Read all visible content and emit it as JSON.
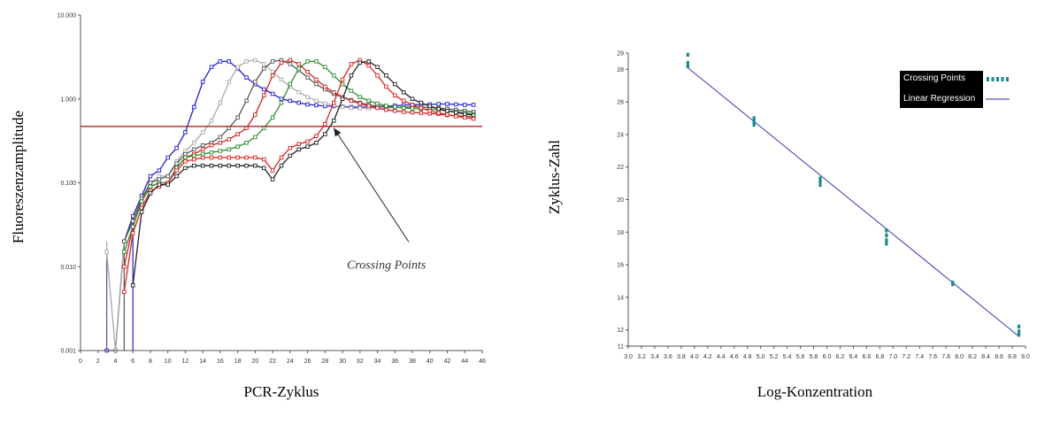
{
  "chart_data": [
    {
      "type": "line",
      "xlabel": "PCR-Zyklus",
      "ylabel": "Fluoreszenzamplitude",
      "yscale": "log",
      "xlim": [
        0,
        46
      ],
      "ylim": [
        0.001,
        10
      ],
      "x_ticks": [
        0,
        2,
        4,
        6,
        8,
        10,
        12,
        14,
        16,
        18,
        20,
        22,
        24,
        26,
        28,
        30,
        32,
        34,
        36,
        38,
        40,
        42,
        44,
        46
      ],
      "y_ticks": [
        {
          "value": 0.001,
          "label": "0.001"
        },
        {
          "value": 0.01,
          "label": "0.010"
        },
        {
          "value": 0.1,
          "label": "0.100"
        },
        {
          "value": 1,
          "label": "1.000"
        },
        {
          "value": 10,
          "label": "10.000"
        }
      ],
      "threshold": {
        "y": 0.47,
        "color": "#b22222"
      },
      "annotation": {
        "text": "Crossing Points",
        "arrow_to": {
          "x": 29,
          "y": 0.45
        },
        "text_at": {
          "x": 30.5,
          "y": 0.0095
        }
      },
      "grid": false,
      "series": [
        {
          "color": "#1f1fd6",
          "x": [
            3,
            4,
            5,
            6,
            7,
            8,
            9,
            10,
            11,
            12,
            13,
            14,
            15,
            16,
            17,
            18,
            19,
            20,
            21,
            22,
            23,
            24,
            25,
            26,
            27,
            28,
            29,
            30,
            31,
            32,
            33,
            34,
            35,
            36,
            37,
            38,
            39,
            40,
            41,
            42,
            43,
            44,
            45
          ],
          "y": [
            0.001,
            0.001,
            0.02,
            0.04,
            0.07,
            0.12,
            0.14,
            0.2,
            0.26,
            0.4,
            0.8,
            1.6,
            2.4,
            2.8,
            2.8,
            2.3,
            1.8,
            1.5,
            1.3,
            1.15,
            1.0,
            0.95,
            0.9,
            0.86,
            0.84,
            0.82,
            0.82,
            0.81,
            0.8,
            0.8,
            0.8,
            0.81,
            0.82,
            0.83,
            0.84,
            0.85,
            0.86,
            0.86,
            0.87,
            0.87,
            0.86,
            0.85,
            0.85
          ]
        },
        {
          "color": "#a9a9a9",
          "x": [
            3,
            4,
            5,
            6,
            7,
            8,
            9,
            10,
            11,
            12,
            13,
            14,
            15,
            16,
            17,
            18,
            19,
            20,
            21,
            22,
            23,
            24,
            25,
            26,
            27,
            28,
            29,
            30,
            31,
            32,
            33,
            34,
            35,
            36,
            37,
            38,
            39,
            40,
            41,
            42,
            43,
            44,
            45
          ],
          "y": [
            0.015,
            0.001,
            0.02,
            0.035,
            0.06,
            0.1,
            0.12,
            0.12,
            0.18,
            0.24,
            0.3,
            0.4,
            0.55,
            0.9,
            1.6,
            2.4,
            2.8,
            2.9,
            2.6,
            2.1,
            1.7,
            1.4,
            1.2,
            1.05,
            0.95,
            0.88,
            0.84,
            0.8,
            0.78,
            0.77,
            0.77,
            0.78,
            0.78,
            0.79,
            0.8,
            0.8,
            0.8,
            0.79,
            0.78,
            0.76,
            0.74,
            0.72,
            0.7
          ]
        },
        {
          "color": "#555555",
          "x": [
            5,
            6,
            7,
            8,
            9,
            10,
            11,
            12,
            13,
            14,
            15,
            16,
            17,
            18,
            19,
            20,
            21,
            22,
            23,
            24,
            25,
            26,
            27,
            28,
            29,
            30,
            31,
            32,
            33,
            34,
            35,
            36,
            37,
            38,
            39,
            40,
            41,
            42,
            43,
            44,
            45
          ],
          "y": [
            0.02,
            0.035,
            0.065,
            0.1,
            0.11,
            0.12,
            0.17,
            0.22,
            0.25,
            0.28,
            0.3,
            0.35,
            0.45,
            0.6,
            0.95,
            1.6,
            2.3,
            2.8,
            2.9,
            2.6,
            2.2,
            1.8,
            1.5,
            1.3,
            1.15,
            1.05,
            0.97,
            0.9,
            0.85,
            0.82,
            0.8,
            0.79,
            0.79,
            0.8,
            0.8,
            0.79,
            0.78,
            0.76,
            0.74,
            0.72,
            0.7
          ]
        },
        {
          "color": "#cc2222",
          "x": [
            5,
            6,
            7,
            8,
            9,
            10,
            11,
            12,
            13,
            14,
            15,
            16,
            17,
            18,
            19,
            20,
            21,
            22,
            23,
            24,
            25,
            26,
            27,
            28,
            29,
            30,
            31,
            32,
            33,
            34,
            35,
            36,
            37,
            38,
            39,
            40,
            41,
            42,
            43,
            44,
            45
          ],
          "y": [
            0.01,
            0.03,
            0.06,
            0.09,
            0.1,
            0.1,
            0.15,
            0.2,
            0.22,
            0.25,
            0.28,
            0.3,
            0.33,
            0.38,
            0.45,
            0.65,
            1.1,
            1.9,
            2.7,
            2.9,
            2.6,
            2.1,
            1.7,
            1.4,
            1.2,
            1.05,
            0.95,
            0.88,
            0.82,
            0.78,
            0.74,
            0.72,
            0.7,
            0.69,
            0.68,
            0.67,
            0.66,
            0.64,
            0.63,
            0.62,
            0.61
          ]
        },
        {
          "color": "#2e8b2e",
          "x": [
            5,
            6,
            7,
            8,
            9,
            10,
            11,
            12,
            13,
            14,
            15,
            16,
            17,
            18,
            19,
            20,
            21,
            22,
            23,
            24,
            25,
            26,
            27,
            28,
            29,
            30,
            31,
            32,
            33,
            34,
            35,
            36,
            37,
            38,
            39,
            40,
            41,
            42,
            43,
            44,
            45
          ],
          "y": [
            0.015,
            0.03,
            0.06,
            0.09,
            0.1,
            0.1,
            0.15,
            0.2,
            0.21,
            0.22,
            0.23,
            0.24,
            0.25,
            0.27,
            0.3,
            0.35,
            0.45,
            0.6,
            0.9,
            1.5,
            2.3,
            2.8,
            2.8,
            2.4,
            1.9,
            1.5,
            1.25,
            1.05,
            0.95,
            0.88,
            0.83,
            0.8,
            0.78,
            0.77,
            0.76,
            0.75,
            0.74,
            0.72,
            0.7,
            0.68,
            0.66
          ]
        },
        {
          "color": "#dd2222",
          "x": [
            5,
            6,
            7,
            8,
            9,
            10,
            11,
            12,
            13,
            14,
            15,
            16,
            17,
            18,
            19,
            20,
            21,
            22,
            23,
            24,
            25,
            26,
            27,
            28,
            29,
            30,
            31,
            32,
            33,
            34,
            35,
            36,
            37,
            38,
            39,
            40,
            41,
            42,
            43,
            44,
            45
          ],
          "y": [
            0.005,
            0.025,
            0.05,
            0.08,
            0.09,
            0.1,
            0.14,
            0.18,
            0.19,
            0.2,
            0.2,
            0.2,
            0.2,
            0.2,
            0.2,
            0.2,
            0.19,
            0.14,
            0.2,
            0.26,
            0.29,
            0.31,
            0.36,
            0.5,
            0.9,
            1.7,
            2.6,
            2.9,
            2.5,
            1.9,
            1.4,
            1.1,
            0.95,
            0.85,
            0.78,
            0.72,
            0.68,
            0.65,
            0.62,
            0.6,
            0.58
          ]
        },
        {
          "color": "#222222",
          "x": [
            6,
            7,
            8,
            9,
            10,
            11,
            12,
            13,
            14,
            15,
            16,
            17,
            18,
            19,
            20,
            21,
            22,
            23,
            24,
            25,
            26,
            27,
            28,
            29,
            30,
            31,
            32,
            33,
            34,
            35,
            36,
            37,
            38,
            39,
            40,
            41,
            42,
            43,
            44,
            45
          ],
          "y": [
            0.006,
            0.045,
            0.075,
            0.095,
            0.095,
            0.12,
            0.15,
            0.16,
            0.16,
            0.16,
            0.16,
            0.16,
            0.16,
            0.16,
            0.16,
            0.15,
            0.11,
            0.16,
            0.21,
            0.25,
            0.27,
            0.3,
            0.38,
            0.55,
            1.0,
            1.9,
            2.7,
            2.8,
            2.4,
            1.9,
            1.5,
            1.2,
            1.0,
            0.9,
            0.82,
            0.76,
            0.72,
            0.69,
            0.66,
            0.64
          ]
        }
      ],
      "drop_lines": [
        {
          "x": 3,
          "from": 0.001,
          "to": 0.02,
          "color": "#a9a9a9"
        },
        {
          "x": 3,
          "from": 0.001,
          "to": 0.012,
          "color": "#6a4fa3"
        },
        {
          "x": 5,
          "from": 0.001,
          "to": 0.02,
          "color": "#555555"
        },
        {
          "x": 6,
          "from": 0.001,
          "to": 0.04,
          "color": "#1f1fd6"
        }
      ]
    },
    {
      "type": "scatter",
      "xlabel": "Log-Konzentration",
      "ylabel": "Zyklus-Zahl",
      "xlim": [
        3.0,
        9.0
      ],
      "ylim": [
        11,
        29
      ],
      "x_ticks": [
        "3.0",
        "3.2",
        "3.4",
        "3.6",
        "3.8",
        "4.0",
        "4.2",
        "4.4",
        "4.6",
        "4.8",
        "5.0",
        "5.2",
        "5.4",
        "5.6",
        "5.8",
        "6.0",
        "6.2",
        "6.4",
        "6.6",
        "6.8",
        "7.0",
        "7.2",
        "7.4",
        "7.6",
        "7.8",
        "8.0",
        "8.2",
        "8.4",
        "8.6",
        "8.8",
        "9.0"
      ],
      "y_ticks": [
        11,
        12,
        14,
        16,
        18,
        20,
        22,
        24,
        26,
        28,
        29
      ],
      "grid": false,
      "legend_position": "top-right",
      "series": [
        {
          "name": "Crossing Points",
          "color": "#1a8a8a",
          "x": [
            3.9,
            3.9,
            3.9,
            4.9,
            4.9,
            4.9,
            5.9,
            5.9,
            5.9,
            6.9,
            6.9,
            6.9,
            6.9,
            7.9,
            7.9,
            8.9,
            8.9,
            8.9
          ],
          "y": [
            28.9,
            28.4,
            28.2,
            25.0,
            24.8,
            24.6,
            21.3,
            21.1,
            20.9,
            18.1,
            17.8,
            17.5,
            17.3,
            14.9,
            14.8,
            12.2,
            11.9,
            11.7
          ]
        },
        {
          "name": "Linear Regression",
          "color": "#5555bb",
          "line": {
            "x": [
              3.9,
              8.9
            ],
            "y": [
              28.1,
              11.6
            ]
          }
        }
      ]
    }
  ]
}
